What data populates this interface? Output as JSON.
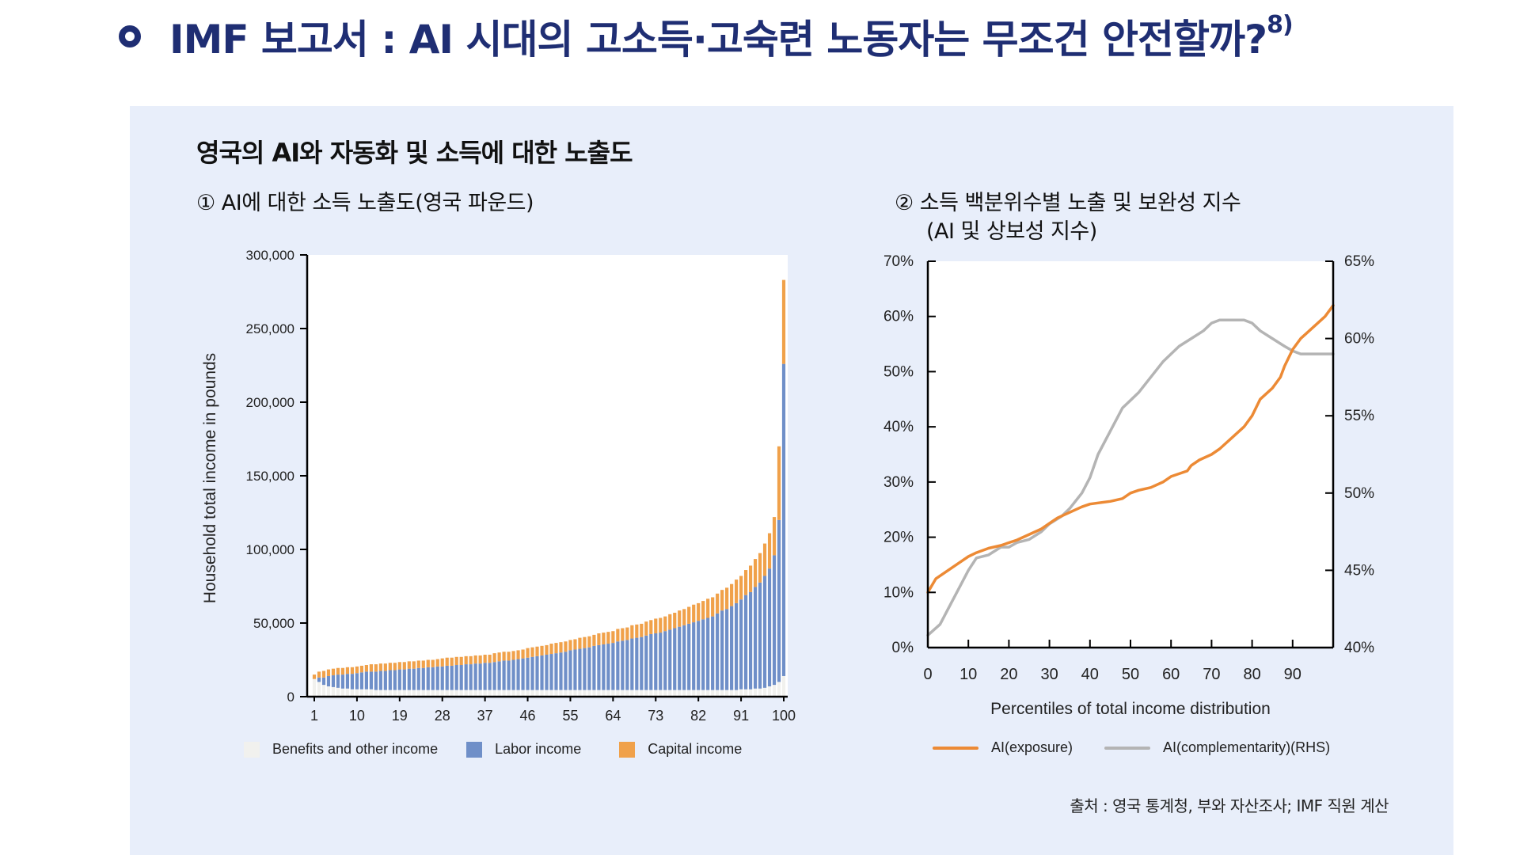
{
  "header": {
    "title": "IMF 보고서 : AI 시대의 고소득·고숙련 노동자는 무조건 안전할까?",
    "footnote": "8)"
  },
  "panel": {
    "title": "영국의 AI와 자동화 및 소득에 대한 노출도",
    "source": "출처 : 영국 통계청, 부와 자산조사; IMF 직원 계산"
  },
  "colors": {
    "header": "#1f2e73",
    "panel_bg": "#e8eefa",
    "benefits": "#f1f1ee",
    "labor": "#6f8fc8",
    "capital": "#f0a14a",
    "exposure": "#ec8a35",
    "complementarity": "#b4b4b4"
  },
  "chart_data": [
    {
      "type": "bar",
      "subtitle": "① AI에 대한 소득 노출도(영국 파운드)",
      "stacked": true,
      "ylabel": "Household total income in pounds",
      "xlabel": "",
      "ylim": [
        0,
        300000
      ],
      "yticks": [
        0,
        50000,
        100000,
        150000,
        200000,
        250000,
        300000
      ],
      "ytick_labels": [
        "0",
        "50,000",
        "100,000",
        "150,000",
        "200,000",
        "250,000",
        "300,000"
      ],
      "xtick_labels": [
        "1",
        "10",
        "19",
        "28",
        "37",
        "46",
        "55",
        "64",
        "73",
        "82",
        "91",
        "100"
      ],
      "x": [
        1,
        2,
        3,
        4,
        5,
        6,
        7,
        8,
        9,
        10,
        11,
        12,
        13,
        14,
        15,
        16,
        17,
        18,
        19,
        20,
        21,
        22,
        23,
        24,
        25,
        26,
        27,
        28,
        29,
        30,
        31,
        32,
        33,
        34,
        35,
        36,
        37,
        38,
        39,
        40,
        41,
        42,
        43,
        44,
        45,
        46,
        47,
        48,
        49,
        50,
        51,
        52,
        53,
        54,
        55,
        56,
        57,
        58,
        59,
        60,
        61,
        62,
        63,
        64,
        65,
        66,
        67,
        68,
        69,
        70,
        71,
        72,
        73,
        74,
        75,
        76,
        77,
        78,
        79,
        80,
        81,
        82,
        83,
        84,
        85,
        86,
        87,
        88,
        89,
        90,
        91,
        92,
        93,
        94,
        95,
        96,
        97,
        98,
        99,
        100
      ],
      "legend_position": "bottom",
      "series": [
        {
          "name": "Benefits and other income",
          "values": [
            12000,
            10000,
            8000,
            7000,
            6500,
            6000,
            5500,
            5500,
            5000,
            5000,
            5000,
            5000,
            5000,
            4500,
            4500,
            4500,
            4500,
            4500,
            4500,
            4500,
            4500,
            4500,
            4500,
            4500,
            4500,
            4500,
            4500,
            4500,
            4500,
            4500,
            4500,
            4500,
            4500,
            4500,
            4500,
            4500,
            4500,
            4500,
            4500,
            4500,
            4500,
            4500,
            4500,
            4500,
            4500,
            4500,
            4500,
            4500,
            4500,
            4500,
            4500,
            4500,
            4500,
            4500,
            4500,
            4500,
            4500,
            4500,
            4500,
            4500,
            4500,
            4500,
            4500,
            4500,
            4500,
            4500,
            4500,
            4500,
            4500,
            4500,
            4500,
            4500,
            4500,
            4500,
            4500,
            4500,
            4500,
            4500,
            4500,
            4500,
            4500,
            4500,
            4500,
            4500,
            4500,
            4500,
            4500,
            4500,
            4500,
            4500,
            5000,
            5000,
            5000,
            5500,
            5500,
            6000,
            7000,
            8000,
            10000,
            14000
          ]
        },
        {
          "name": "Labor income",
          "values": [
            0,
            3000,
            5000,
            7000,
            8000,
            9000,
            9500,
            10000,
            10500,
            11000,
            11500,
            12000,
            12000,
            12500,
            13000,
            13000,
            13500,
            13500,
            14000,
            14000,
            14500,
            14500,
            15000,
            15000,
            15500,
            15500,
            16000,
            16000,
            16500,
            16500,
            17000,
            17000,
            17500,
            17500,
            18000,
            18000,
            18500,
            18500,
            19000,
            19500,
            20000,
            20000,
            20500,
            21000,
            21500,
            22000,
            22500,
            23000,
            23500,
            24000,
            24500,
            25000,
            25500,
            26000,
            27000,
            27500,
            28000,
            28500,
            29000,
            30000,
            30500,
            31000,
            31500,
            32000,
            33000,
            33500,
            34000,
            35000,
            35500,
            36000,
            37000,
            38000,
            38500,
            39000,
            40000,
            41000,
            42000,
            43000,
            44000,
            45000,
            46000,
            47000,
            48000,
            49000,
            50000,
            52000,
            54000,
            55000,
            57000,
            59000,
            61000,
            64000,
            66000,
            69000,
            72000,
            76000,
            80000,
            88000,
            110000,
            212000
          ]
        },
        {
          "name": "Capital income",
          "values": [
            3000,
            4000,
            4500,
            4500,
            4500,
            4500,
            4500,
            4500,
            4500,
            4500,
            4500,
            4500,
            5000,
            5000,
            5000,
            5000,
            5000,
            5000,
            5000,
            5000,
            5000,
            5000,
            5000,
            5000,
            5000,
            5000,
            5000,
            5500,
            5500,
            5500,
            5500,
            5500,
            5500,
            5500,
            5500,
            5500,
            5500,
            5500,
            6000,
            6000,
            6000,
            6000,
            6000,
            6000,
            6000,
            6500,
            6500,
            6500,
            6500,
            6500,
            7000,
            7000,
            7000,
            7000,
            7000,
            7000,
            7500,
            7500,
            7500,
            7500,
            8000,
            8000,
            8000,
            8000,
            8500,
            8500,
            8500,
            9000,
            9000,
            9000,
            9500,
            9500,
            10000,
            10000,
            10000,
            10500,
            10500,
            11000,
            11000,
            11500,
            12000,
            12000,
            12500,
            13000,
            13000,
            13500,
            14000,
            14500,
            15000,
            16000,
            16000,
            17000,
            18000,
            19000,
            20000,
            22000,
            24000,
            26000,
            50000,
            57000
          ]
        }
      ]
    },
    {
      "type": "line",
      "subtitle": "② 소득 백분위수별 노출 및 보완성 지수",
      "subtitle2": "(AI 및 상보성 지수)",
      "xlabel": "Percentiles of total income distribution",
      "xlim": [
        0,
        100
      ],
      "xticks": [
        0,
        10,
        20,
        30,
        40,
        50,
        60,
        70,
        80,
        90
      ],
      "ylim": [
        0,
        0.7
      ],
      "yticks": [
        0,
        0.1,
        0.2,
        0.3,
        0.4,
        0.5,
        0.6,
        0.7
      ],
      "ytick_labels": [
        "0%",
        "10%",
        "20%",
        "30%",
        "40%",
        "50%",
        "60%",
        "70%"
      ],
      "y2lim": [
        0.4,
        0.65
      ],
      "y2ticks": [
        0.4,
        0.45,
        0.5,
        0.55,
        0.6,
        0.65
      ],
      "y2tick_labels": [
        "40%",
        "45%",
        "50%",
        "55%",
        "60%",
        "65%"
      ],
      "legend_position": "bottom",
      "series": [
        {
          "name": "AI(exposure)",
          "axis": "left",
          "x": [
            0,
            2,
            5,
            8,
            10,
            12,
            15,
            18,
            20,
            22,
            25,
            28,
            30,
            32,
            35,
            38,
            40,
            42,
            45,
            48,
            50,
            52,
            55,
            58,
            60,
            62,
            64,
            65,
            67,
            70,
            72,
            75,
            78,
            80,
            82,
            85,
            87,
            88,
            90,
            92,
            95,
            98,
            100
          ],
          "y": [
            0.1,
            0.125,
            0.14,
            0.155,
            0.165,
            0.172,
            0.18,
            0.185,
            0.19,
            0.195,
            0.205,
            0.215,
            0.225,
            0.235,
            0.245,
            0.255,
            0.26,
            0.262,
            0.265,
            0.27,
            0.28,
            0.285,
            0.29,
            0.3,
            0.31,
            0.315,
            0.32,
            0.33,
            0.34,
            0.35,
            0.36,
            0.38,
            0.4,
            0.42,
            0.45,
            0.47,
            0.49,
            0.51,
            0.54,
            0.56,
            0.58,
            0.6,
            0.62
          ]
        },
        {
          "name": "AI(complementarity)(RHS)",
          "axis": "right",
          "x": [
            0,
            3,
            5,
            8,
            10,
            12,
            15,
            18,
            20,
            22,
            25,
            28,
            30,
            33,
            35,
            38,
            40,
            42,
            45,
            48,
            50,
            52,
            55,
            58,
            60,
            62,
            65,
            68,
            70,
            72,
            75,
            78,
            80,
            82,
            85,
            88,
            90,
            92,
            95,
            98,
            100
          ],
          "y": [
            0.408,
            0.415,
            0.425,
            0.44,
            0.45,
            0.458,
            0.46,
            0.465,
            0.465,
            0.468,
            0.47,
            0.475,
            0.48,
            0.485,
            0.49,
            0.5,
            0.51,
            0.525,
            0.54,
            0.555,
            0.56,
            0.565,
            0.575,
            0.585,
            0.59,
            0.595,
            0.6,
            0.605,
            0.61,
            0.612,
            0.612,
            0.612,
            0.61,
            0.605,
            0.6,
            0.595,
            0.592,
            0.59,
            0.59,
            0.59,
            0.59
          ]
        }
      ]
    }
  ]
}
